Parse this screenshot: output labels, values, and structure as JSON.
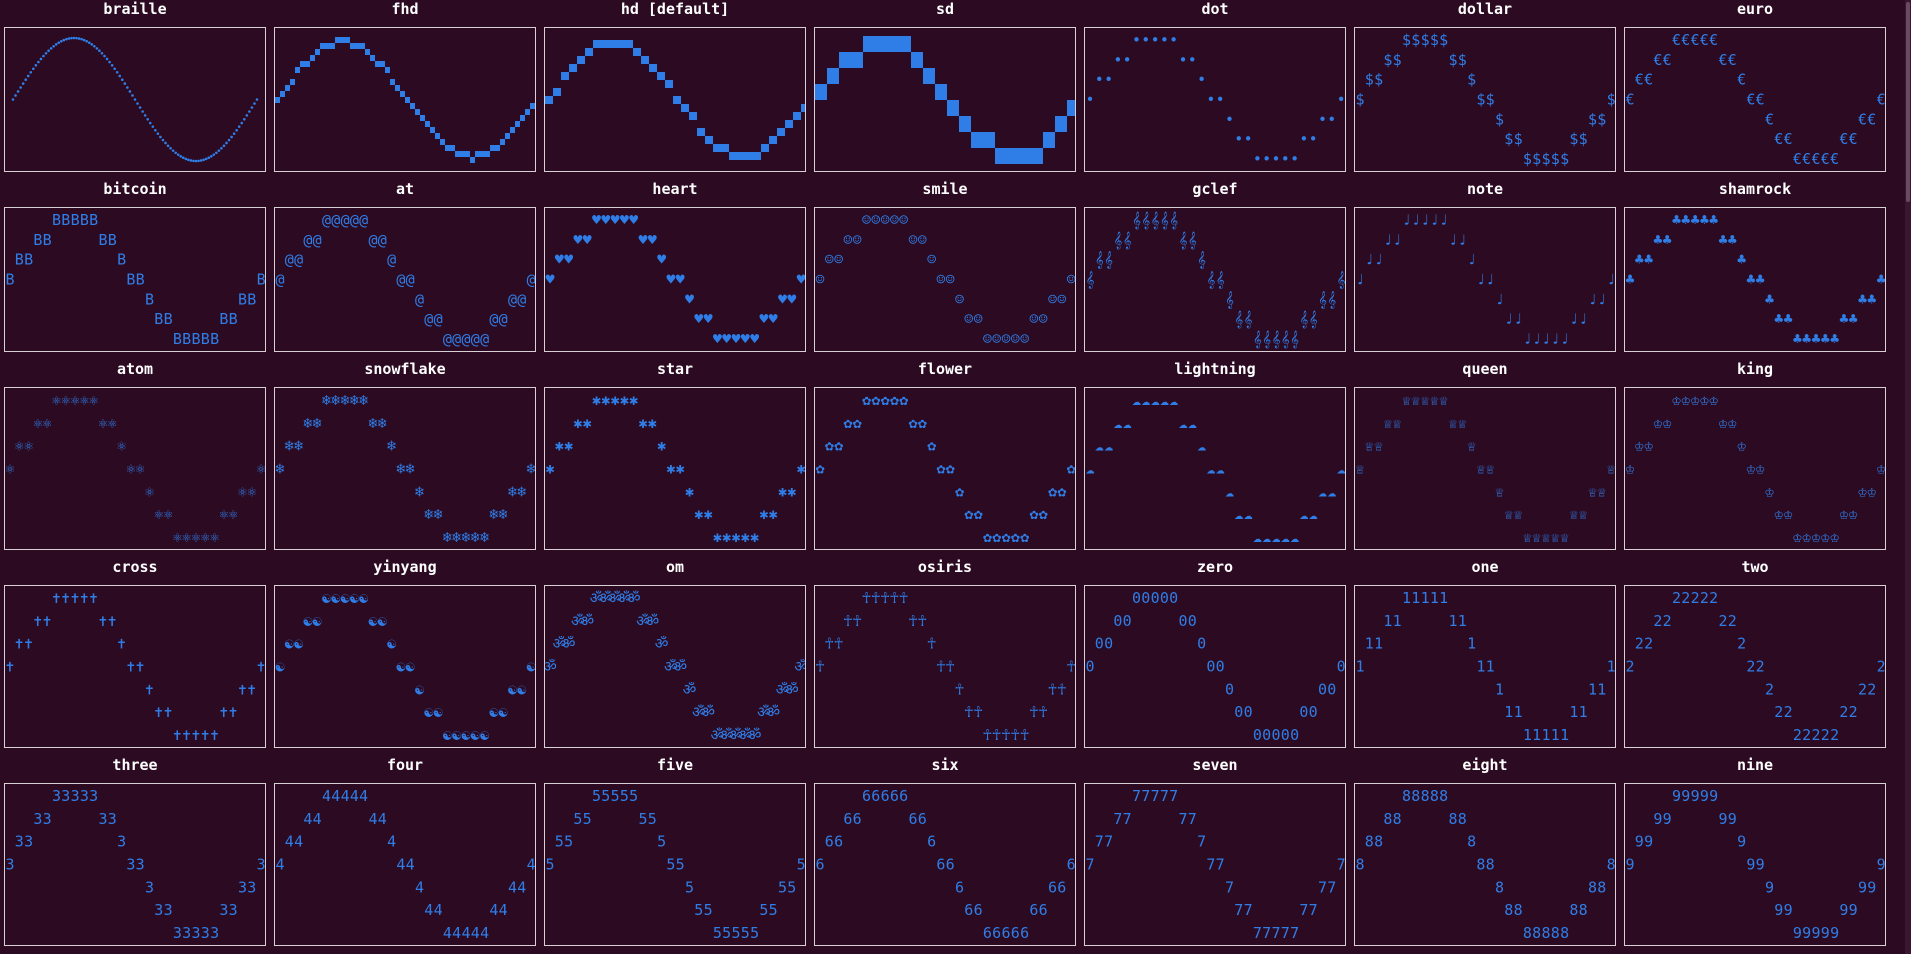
{
  "accent_color": "#2f7ee8",
  "background_color": "#2c0a22",
  "frame_color": "#d8d0d4",
  "title_color": "#ffffff",
  "panels": [
    {
      "title": "braille",
      "marker": "braille"
    },
    {
      "title": "fhd",
      "marker": "fhd"
    },
    {
      "title": "hd [default]",
      "marker": "hd"
    },
    {
      "title": "sd",
      "marker": "sd"
    },
    {
      "title": "dot",
      "marker": "dot",
      "glyph": "•"
    },
    {
      "title": "dollar",
      "marker": "dollar",
      "glyph": "$"
    },
    {
      "title": "euro",
      "marker": "euro",
      "glyph": "€"
    },
    {
      "title": "bitcoin",
      "marker": "bitcoin",
      "glyph": "B"
    },
    {
      "title": "at",
      "marker": "at",
      "glyph": "@"
    },
    {
      "title": "heart",
      "marker": "heart",
      "glyph": "♥"
    },
    {
      "title": "smile",
      "marker": "smile",
      "glyph": "☺"
    },
    {
      "title": "gclef",
      "marker": "gclef",
      "glyph": "𝄞"
    },
    {
      "title": "note",
      "marker": "note",
      "glyph": "♩"
    },
    {
      "title": "shamrock",
      "marker": "shamrock",
      "glyph": "♣"
    },
    {
      "title": "atom",
      "marker": "atom",
      "glyph": "⚛"
    },
    {
      "title": "snowflake",
      "marker": "snowflake",
      "glyph": "❄"
    },
    {
      "title": "star",
      "marker": "star",
      "glyph": "✱"
    },
    {
      "title": "flower",
      "marker": "flower",
      "glyph": "✿"
    },
    {
      "title": "lightning",
      "marker": "lightning",
      "glyph": "☁"
    },
    {
      "title": "queen",
      "marker": "queen",
      "glyph": "♕"
    },
    {
      "title": "king",
      "marker": "king",
      "glyph": "♔"
    },
    {
      "title": "cross",
      "marker": "cross",
      "glyph": "✝"
    },
    {
      "title": "yinyang",
      "marker": "yinyang",
      "glyph": "☯"
    },
    {
      "title": "om",
      "marker": "om",
      "glyph": "ॐ"
    },
    {
      "title": "osiris",
      "marker": "osiris",
      "glyph": "☥"
    },
    {
      "title": "zero",
      "marker": "zero",
      "glyph": "0"
    },
    {
      "title": "one",
      "marker": "one",
      "glyph": "1"
    },
    {
      "title": "two",
      "marker": "two",
      "glyph": "2"
    },
    {
      "title": "three",
      "marker": "three",
      "glyph": "3"
    },
    {
      "title": "four",
      "marker": "four",
      "glyph": "4"
    },
    {
      "title": "five",
      "marker": "five",
      "glyph": "5"
    },
    {
      "title": "six",
      "marker": "six",
      "glyph": "6"
    },
    {
      "title": "seven",
      "marker": "seven",
      "glyph": "7"
    },
    {
      "title": "eight",
      "marker": "eight",
      "glyph": "8"
    },
    {
      "title": "nine",
      "marker": "nine",
      "glyph": "9"
    }
  ]
}
